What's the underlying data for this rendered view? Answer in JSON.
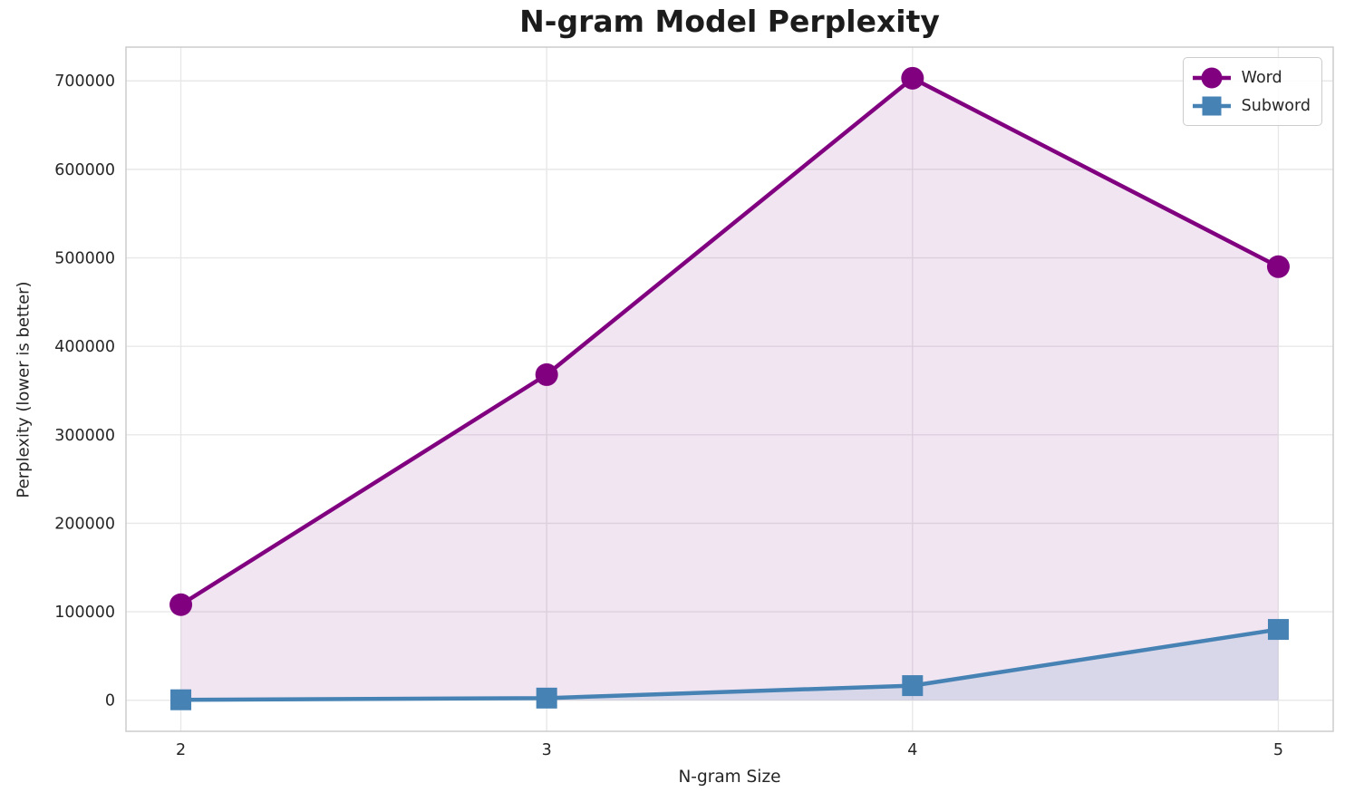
{
  "chart_data": {
    "type": "line",
    "title": "N-gram Model Perplexity",
    "xlabel": "N-gram Size",
    "ylabel": "Perplexity (lower is better)",
    "x": [
      2,
      3,
      4,
      5
    ],
    "x_ticks": [
      2,
      3,
      4,
      5
    ],
    "x_tick_labels": [
      "2",
      "3",
      "4",
      "5"
    ],
    "y_ticks": [
      0,
      100000,
      200000,
      300000,
      400000,
      500000,
      600000,
      700000
    ],
    "y_tick_labels": [
      "0",
      "100000",
      "200000",
      "300000",
      "400000",
      "500000",
      "600000",
      "700000"
    ],
    "xlim": [
      1.85,
      5.15
    ],
    "ylim": [
      -35150,
      738150
    ],
    "grid": true,
    "legend_position": "upper right",
    "fill_baseline": 0,
    "series": [
      {
        "name": "Word",
        "marker": "circle",
        "color": "#800080",
        "fill_alpha": 0.1,
        "values": [
          108000,
          368000,
          703000,
          490000
        ]
      },
      {
        "name": "Subword",
        "marker": "square",
        "color": "#4682b4",
        "fill_alpha": 0.15,
        "values": [
          500,
          2400,
          16500,
          80000
        ]
      }
    ]
  },
  "styles": {
    "background": "#ffffff",
    "grid_color": "#e8e8e8",
    "spine_color": "#c9c9c9",
    "tick_color": "#262626",
    "title_color": "#1c1c1c"
  }
}
